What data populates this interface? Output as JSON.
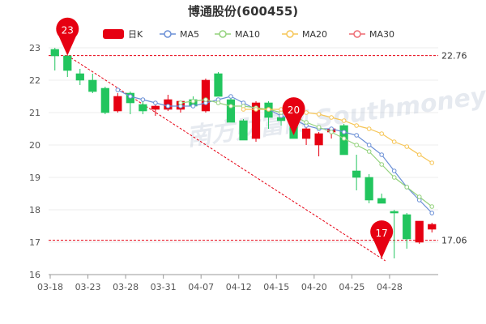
{
  "chart_data": {
    "type": "candlestick",
    "title": "博通股份(600455)",
    "ylim": [
      16,
      23.2
    ],
    "y_ticks": [
      16,
      17,
      18,
      19,
      20,
      21,
      22,
      23
    ],
    "x_tick_labels": [
      "03-18",
      "03-23",
      "03-28",
      "03-31",
      "04-07",
      "04-12",
      "04-15",
      "04-20",
      "04-25",
      "04-28"
    ],
    "legend": [
      {
        "name": "日K",
        "color": "#e60012"
      },
      {
        "name": "MA5",
        "color": "#6a8fd6"
      },
      {
        "name": "MA10",
        "color": "#93d27c"
      },
      {
        "name": "MA20",
        "color": "#f6c556"
      },
      {
        "name": "MA30",
        "color": "#ee6a72"
      }
    ],
    "colors": {
      "up": "#e60012",
      "down": "#22c55e",
      "grid": "#eeeeee",
      "axis": "#999999",
      "ref": "#e60012"
    },
    "reference_lines": [
      {
        "value": 22.76,
        "label": "22.76"
      },
      {
        "value": 17.06,
        "label": "17.06"
      }
    ],
    "markers": [
      {
        "label": "23",
        "index": 1,
        "value": 22.76
      },
      {
        "label": "20",
        "index": 19,
        "value": 20.3
      },
      {
        "label": "17",
        "index": 26,
        "value": 16.5
      }
    ],
    "watermark": "南方财富网 Southmoney",
    "candles": [
      {
        "o": 22.95,
        "h": 23.0,
        "l": 22.3,
        "c": 22.75
      },
      {
        "o": 22.75,
        "h": 22.76,
        "l": 22.1,
        "c": 22.3
      },
      {
        "o": 22.2,
        "h": 22.35,
        "l": 21.85,
        "c": 22.0
      },
      {
        "o": 22.0,
        "h": 22.2,
        "l": 21.6,
        "c": 21.65
      },
      {
        "o": 21.75,
        "h": 21.8,
        "l": 20.95,
        "c": 21.0
      },
      {
        "o": 21.05,
        "h": 21.6,
        "l": 21.0,
        "c": 21.5
      },
      {
        "o": 21.6,
        "h": 21.65,
        "l": 20.95,
        "c": 21.3
      },
      {
        "o": 21.25,
        "h": 21.35,
        "l": 20.95,
        "c": 21.05
      },
      {
        "o": 21.1,
        "h": 21.25,
        "l": 20.9,
        "c": 21.2
      },
      {
        "o": 21.1,
        "h": 21.55,
        "l": 21.05,
        "c": 21.4
      },
      {
        "o": 21.1,
        "h": 21.3,
        "l": 21.0,
        "c": 21.35
      },
      {
        "o": 21.4,
        "h": 21.5,
        "l": 21.15,
        "c": 21.2
      },
      {
        "o": 21.05,
        "h": 22.05,
        "l": 21.0,
        "c": 22.0
      },
      {
        "o": 22.2,
        "h": 22.25,
        "l": 21.5,
        "c": 21.5
      },
      {
        "o": 21.4,
        "h": 21.45,
        "l": 20.7,
        "c": 20.7
      },
      {
        "o": 20.75,
        "h": 20.8,
        "l": 20.15,
        "c": 20.15
      },
      {
        "o": 20.2,
        "h": 21.35,
        "l": 20.1,
        "c": 21.3
      },
      {
        "o": 21.3,
        "h": 21.35,
        "l": 20.5,
        "c": 20.85
      },
      {
        "o": 20.85,
        "h": 20.95,
        "l": 20.6,
        "c": 20.75
      },
      {
        "o": 20.7,
        "h": 20.95,
        "l": 20.2,
        "c": 20.2
      },
      {
        "o": 20.2,
        "h": 20.6,
        "l": 20.0,
        "c": 20.5
      },
      {
        "o": 20.0,
        "h": 20.4,
        "l": 19.65,
        "c": 20.35
      },
      {
        "o": 20.4,
        "h": 20.55,
        "l": 20.2,
        "c": 20.5
      },
      {
        "o": 20.6,
        "h": 20.65,
        "l": 19.7,
        "c": 19.7
      },
      {
        "o": 19.2,
        "h": 19.7,
        "l": 18.6,
        "c": 19.0
      },
      {
        "o": 19.0,
        "h": 19.1,
        "l": 18.2,
        "c": 18.3
      },
      {
        "o": 18.35,
        "h": 18.5,
        "l": 18.2,
        "c": 18.2
      },
      {
        "o": 17.95,
        "h": 18.0,
        "l": 16.5,
        "c": 17.9
      },
      {
        "o": 17.85,
        "h": 17.9,
        "l": 16.8,
        "c": 17.1
      },
      {
        "o": 17.0,
        "h": 17.65,
        "l": 16.95,
        "c": 17.65
      },
      {
        "o": 17.4,
        "h": 17.6,
        "l": 17.3,
        "c": 17.55
      }
    ],
    "ma_series": [
      {
        "name": "MA5",
        "color": "#6a8fd6",
        "start": 5,
        "values": [
          21.7,
          21.5,
          21.4,
          21.3,
          21.2,
          21.2,
          21.2,
          21.3,
          21.4,
          21.5,
          21.3,
          21.1,
          21.1,
          20.9,
          20.8,
          20.6,
          20.5,
          20.5,
          20.4,
          20.3,
          20.0,
          19.7,
          19.2,
          18.7,
          18.3,
          17.9
        ]
      },
      {
        "name": "MA10",
        "color": "#93d27c",
        "start": 10,
        "values": [
          21.3,
          21.35,
          21.4,
          21.3,
          21.2,
          21.2,
          21.15,
          21.1,
          21.0,
          20.9,
          20.7,
          20.55,
          20.4,
          20.2,
          20.0,
          19.8,
          19.4,
          19.0,
          18.7,
          18.4,
          18.1
        ]
      },
      {
        "name": "MA20",
        "color": "#f6c556",
        "start": 15,
        "values": [
          21.1,
          21.1,
          21.1,
          21.1,
          21.05,
          21.0,
          20.95,
          20.85,
          20.75,
          20.6,
          20.5,
          20.35,
          20.1,
          19.95,
          19.7,
          19.45
        ]
      }
    ]
  }
}
